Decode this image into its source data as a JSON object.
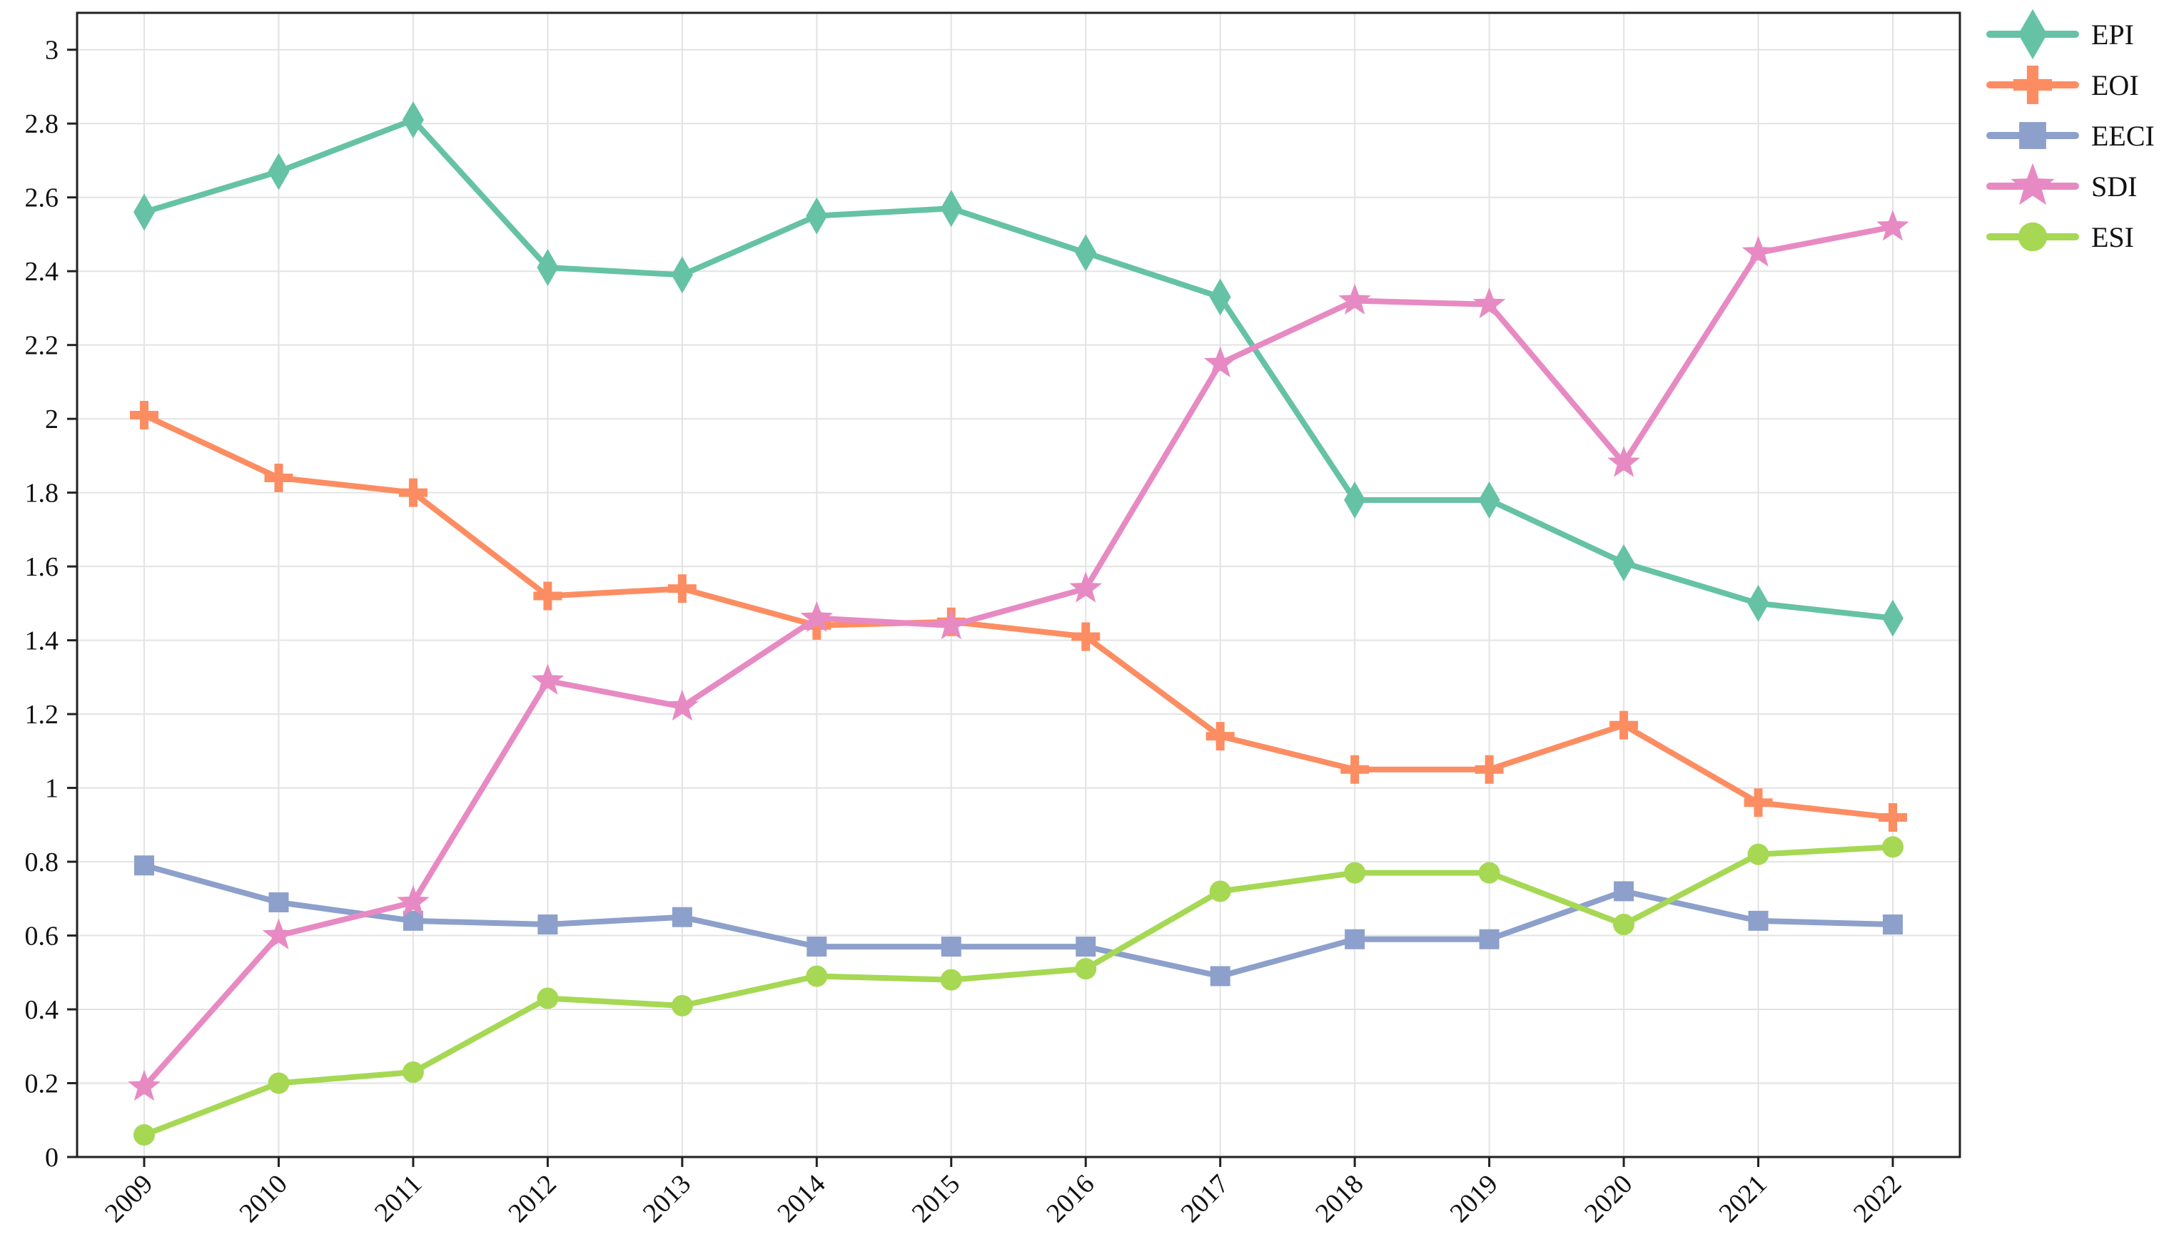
{
  "chart_data": {
    "type": "line",
    "title": "",
    "xlabel": "",
    "ylabel": "",
    "categories": [
      "2009",
      "2010",
      "2011",
      "2012",
      "2013",
      "2014",
      "2015",
      "2016",
      "2017",
      "2018",
      "2019",
      "2020",
      "2021",
      "2022"
    ],
    "ylim": [
      0,
      3.1
    ],
    "yticks": [
      0,
      0.2,
      0.4,
      0.6,
      0.8,
      1,
      1.2,
      1.4,
      1.6,
      1.8,
      2,
      2.2,
      2.4,
      2.6,
      2.8,
      3
    ],
    "ytick_labels": [
      "0",
      "0.2",
      "0.4",
      "0.6",
      "0.8",
      "1",
      "1.2",
      "1.4",
      "1.6",
      "1.8",
      "2",
      "2.2",
      "2.4",
      "2.6",
      "2.8",
      "3"
    ],
    "grid": true,
    "legend_position": "outside-top-right",
    "series": [
      {
        "name": "EPI",
        "color": "#66c2a5",
        "marker": "diamond",
        "values": [
          2.56,
          2.67,
          2.81,
          2.41,
          2.39,
          2.55,
          2.57,
          2.45,
          2.33,
          1.78,
          1.78,
          1.61,
          1.5,
          1.46
        ]
      },
      {
        "name": "EOI",
        "color": "#fc8d62",
        "marker": "plus",
        "values": [
          2.01,
          1.84,
          1.8,
          1.52,
          1.54,
          1.44,
          1.45,
          1.41,
          1.14,
          1.05,
          1.05,
          1.17,
          0.96,
          0.92
        ]
      },
      {
        "name": "EECI",
        "color": "#8da0cb",
        "marker": "square",
        "values": [
          0.79,
          0.69,
          0.64,
          0.63,
          0.65,
          0.57,
          0.57,
          0.57,
          0.49,
          0.59,
          0.59,
          0.72,
          0.64,
          0.63
        ]
      },
      {
        "name": "SDI",
        "color": "#e78ac3",
        "marker": "star",
        "values": [
          0.19,
          0.6,
          0.69,
          1.29,
          1.22,
          1.46,
          1.44,
          1.54,
          2.15,
          2.32,
          2.31,
          1.88,
          2.45,
          2.52
        ]
      },
      {
        "name": "ESI",
        "color": "#a6d854",
        "marker": "circle",
        "values": [
          0.06,
          0.2,
          0.23,
          0.43,
          0.41,
          0.49,
          0.48,
          0.51,
          0.72,
          0.77,
          0.77,
          0.63,
          0.82,
          0.84
        ]
      }
    ]
  }
}
